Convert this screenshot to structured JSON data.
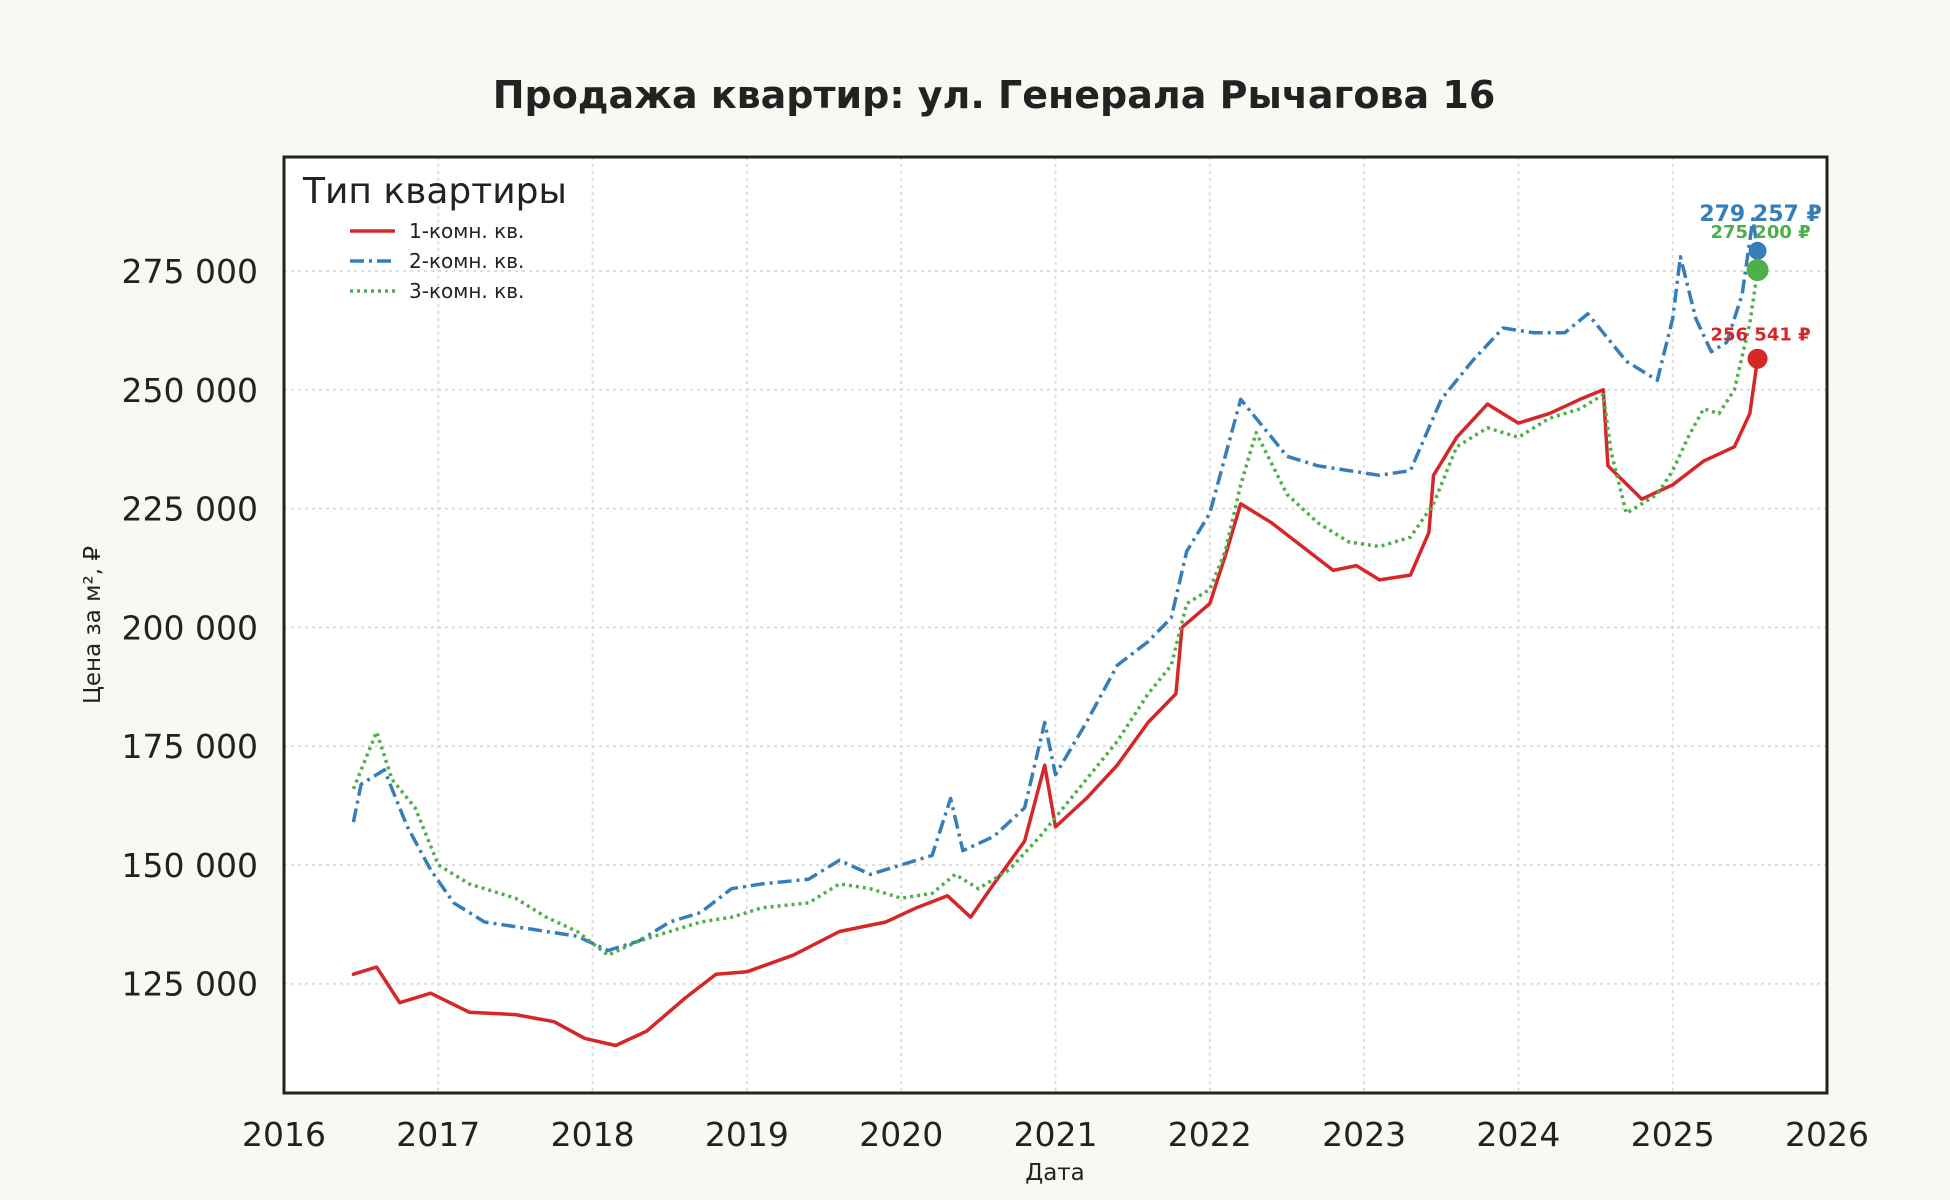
{
  "chart_data": {
    "type": "line",
    "title": "Продажа квартир: ул. Генерала Рычагова 16",
    "xlabel": "Дата",
    "ylabel": "Цена за м², ₽",
    "xlim": [
      2016.0,
      2026.0
    ],
    "ylim": [
      102000,
      299000
    ],
    "x_ticks": [
      "2016",
      "2017",
      "2018",
      "2019",
      "2020",
      "2021",
      "2022",
      "2023",
      "2024",
      "2025",
      "2026"
    ],
    "y_ticks": [
      {
        "value": 125000,
        "label": "125 000"
      },
      {
        "value": 150000,
        "label": "150 000"
      },
      {
        "value": 175000,
        "label": "175 000"
      },
      {
        "value": 200000,
        "label": "200 000"
      },
      {
        "value": 225000,
        "label": "225 000"
      },
      {
        "value": 250000,
        "label": "250 000"
      },
      {
        "value": 275000,
        "label": "275 000"
      }
    ],
    "grid": true,
    "legend": {
      "title": "Тип квартиры",
      "position": "top-left"
    },
    "series": [
      {
        "name": "1-комн. кв.",
        "color": "#d62728",
        "dash": "solid",
        "x": [
          2016.45,
          2016.6,
          2016.75,
          2016.95,
          2017.2,
          2017.5,
          2017.75,
          2017.95,
          2018.15,
          2018.35,
          2018.6,
          2018.8,
          2019.0,
          2019.3,
          2019.6,
          2019.9,
          2020.1,
          2020.3,
          2020.45,
          2020.6,
          2020.8,
          2020.93,
          2021.0,
          2021.2,
          2021.4,
          2021.6,
          2021.78,
          2021.82,
          2022.0,
          2022.1,
          2022.2,
          2022.4,
          2022.6,
          2022.8,
          2022.95,
          2023.1,
          2023.3,
          2023.42,
          2023.45,
          2023.6,
          2023.8,
          2024.0,
          2024.2,
          2024.4,
          2024.55,
          2024.58,
          2024.8,
          2025.0,
          2025.2,
          2025.4,
          2025.5,
          2025.55
        ],
        "y": [
          127000,
          128500,
          121000,
          123000,
          119000,
          118500,
          117000,
          113500,
          112000,
          115000,
          122000,
          127000,
          127500,
          131000,
          136000,
          138000,
          141000,
          143500,
          139000,
          146000,
          155000,
          171000,
          158000,
          164000,
          171000,
          180000,
          186000,
          200000,
          205000,
          215000,
          226000,
          222000,
          217000,
          212000,
          213000,
          210000,
          211000,
          220000,
          232000,
          240000,
          247000,
          243000,
          245000,
          248000,
          250000,
          234000,
          227000,
          230000,
          235000,
          238000,
          245000,
          256541
        ]
      },
      {
        "name": "2-комн. кв.",
        "color": "#377eb8",
        "dash": "dashdot",
        "x": [
          2016.45,
          2016.5,
          2016.65,
          2016.8,
          2016.95,
          2017.1,
          2017.3,
          2017.5,
          2017.7,
          2017.9,
          2018.1,
          2018.3,
          2018.5,
          2018.7,
          2018.9,
          2019.1,
          2019.4,
          2019.6,
          2019.8,
          2020.0,
          2020.2,
          2020.32,
          2020.4,
          2020.6,
          2020.8,
          2020.93,
          2021.0,
          2021.2,
          2021.4,
          2021.6,
          2021.75,
          2021.85,
          2022.0,
          2022.1,
          2022.2,
          2022.3,
          2022.5,
          2022.7,
          2022.9,
          2023.1,
          2023.3,
          2023.5,
          2023.7,
          2023.9,
          2024.1,
          2024.3,
          2024.45,
          2024.55,
          2024.7,
          2024.9,
          2025.0,
          2025.05,
          2025.15,
          2025.25,
          2025.35,
          2025.45,
          2025.52,
          2025.55
        ],
        "y": [
          159000,
          167000,
          170000,
          158000,
          149000,
          142000,
          138000,
          137000,
          136000,
          135000,
          132000,
          134000,
          138000,
          140000,
          145000,
          146000,
          147000,
          151000,
          148000,
          150000,
          152000,
          164000,
          153000,
          156000,
          162000,
          180000,
          169000,
          180000,
          192000,
          197000,
          202000,
          216000,
          224000,
          236000,
          248000,
          244000,
          236000,
          234000,
          233000,
          232000,
          233000,
          248000,
          256000,
          263000,
          262000,
          262000,
          266000,
          262000,
          256000,
          252000,
          265000,
          278000,
          265000,
          258000,
          260000,
          270000,
          286000,
          279257
        ]
      },
      {
        "name": "3-комн. кв.",
        "color": "#4daf4a",
        "dash": "dotted",
        "x": [
          2016.45,
          2016.6,
          2016.7,
          2016.85,
          2017.0,
          2017.2,
          2017.5,
          2017.7,
          2017.9,
          2018.1,
          2018.3,
          2018.5,
          2018.7,
          2018.9,
          2019.1,
          2019.4,
          2019.6,
          2019.8,
          2020.0,
          2020.2,
          2020.35,
          2020.5,
          2020.7,
          2020.9,
          2021.0,
          2021.2,
          2021.4,
          2021.6,
          2021.75,
          2021.85,
          2022.0,
          2022.1,
          2022.2,
          2022.3,
          2022.5,
          2022.7,
          2022.9,
          2023.1,
          2023.3,
          2023.45,
          2023.6,
          2023.8,
          2024.0,
          2024.2,
          2024.4,
          2024.55,
          2024.6,
          2024.7,
          2024.9,
          2025.0,
          2025.1,
          2025.2,
          2025.3,
          2025.4,
          2025.5,
          2025.55
        ],
        "y": [
          166000,
          178000,
          168000,
          162000,
          150000,
          146000,
          143000,
          139000,
          136000,
          131000,
          134000,
          136000,
          138000,
          139000,
          141000,
          142000,
          146000,
          145000,
          143000,
          144000,
          148000,
          145000,
          149000,
          156000,
          160000,
          168000,
          176000,
          186000,
          192000,
          205000,
          208000,
          216000,
          230000,
          241000,
          228000,
          222000,
          218000,
          217000,
          219000,
          226000,
          238000,
          242000,
          240000,
          244000,
          246000,
          249000,
          237000,
          224000,
          228000,
          233000,
          240000,
          246000,
          245000,
          250000,
          264000,
          275200
        ]
      }
    ],
    "end_labels": [
      {
        "series": "2-комн. кв.",
        "x": 2025.55,
        "value": 279257,
        "label": "279 257 ₽"
      },
      {
        "series": "3-комн. кв.",
        "x": 2025.55,
        "value": 275200,
        "label": "275 200 ₽"
      },
      {
        "series": "1-комн. кв.",
        "x": 2025.55,
        "value": 256541,
        "label": "256 541 ₽"
      }
    ]
  }
}
